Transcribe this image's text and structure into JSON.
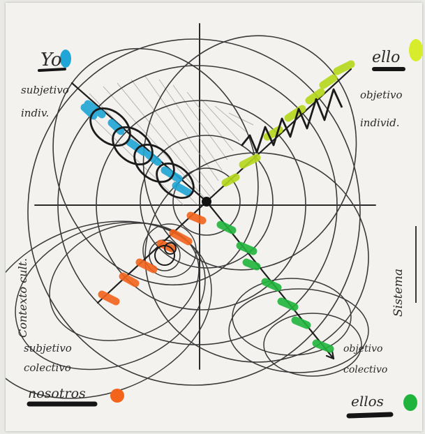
{
  "labels": {
    "top_left_title": "Yo",
    "top_left_line1": "subjetivo",
    "top_left_line2": "indiv.",
    "top_right_title": "ello",
    "top_right_line1": "objetivo",
    "top_right_line2": "individ.",
    "left_vertical": "Contexto cult.",
    "right_vertical": "Sistema",
    "bottom_left_line1": "subjetivo",
    "bottom_left_line2": "colectivo",
    "bottom_left_title": "nosotros",
    "bottom_right_line1": "objetivo",
    "bottom_right_line2": "colectivo",
    "bottom_right_title": "ellos"
  },
  "colors": {
    "paper": "#f3f2ee",
    "pencil": "#2a2a2a",
    "cyan": "#1fa6d6",
    "lime": "#b6d81c",
    "orange": "#f2641c",
    "green": "#20b43c"
  }
}
